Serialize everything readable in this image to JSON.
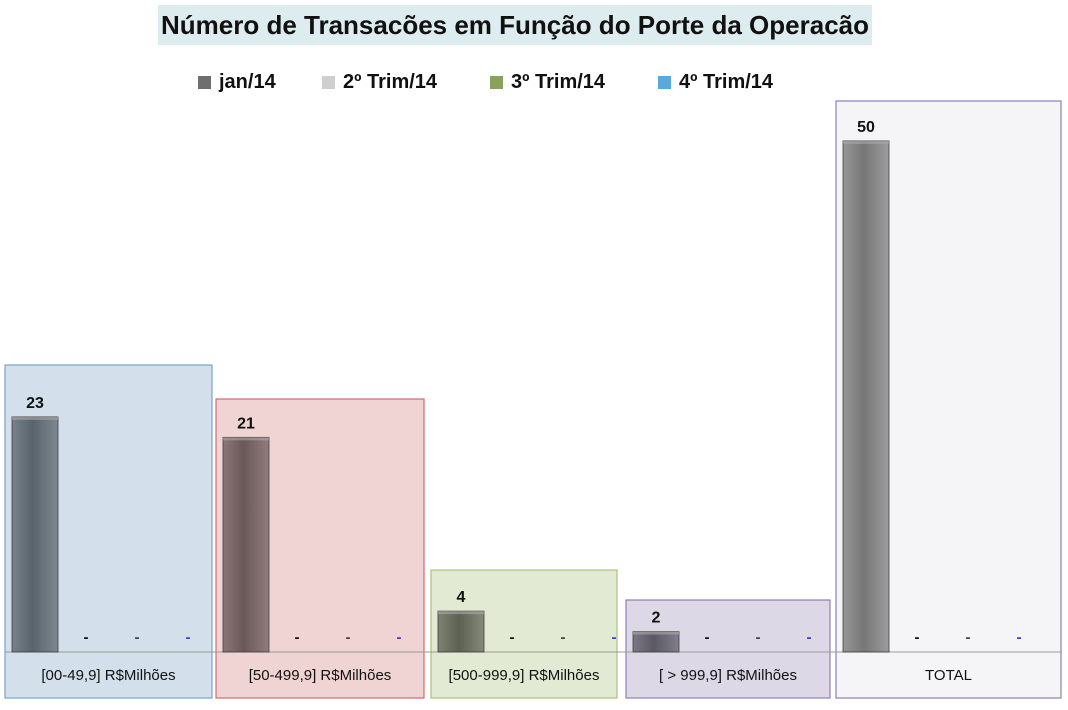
{
  "chart_data": {
    "type": "bar",
    "title": "Número de Transacões em Função do Porte da Operacão",
    "categories": [
      "[00-49,9] R$Milhões",
      "[50-499,9] R$Milhões",
      "[500-999,9] R$Milhões",
      "[ > 999,9] R$Milhões",
      "TOTAL"
    ],
    "series": [
      {
        "name": "jan/14",
        "values": [
          23,
          21,
          4,
          2,
          50
        ],
        "labels": [
          "23",
          "21",
          "4",
          "2",
          "50"
        ]
      },
      {
        "name": "2º Trim/14",
        "values": [
          0,
          0,
          0,
          0,
          0
        ],
        "labels": [
          "-",
          "-",
          "-",
          "-",
          "-"
        ]
      },
      {
        "name": "3º Trim/14",
        "values": [
          0,
          0,
          0,
          0,
          0
        ],
        "labels": [
          "-",
          "-",
          "-",
          "-",
          "-"
        ]
      },
      {
        "name": "4º Trim/14",
        "values": [
          0,
          0,
          0,
          0,
          0
        ],
        "labels": [
          "-",
          "-",
          "-",
          "-",
          "-"
        ]
      }
    ],
    "ylim": [
      0,
      54
    ],
    "legend_position": "top",
    "grid": false,
    "colors": {
      "legend": [
        "#6f6f6f",
        "#cfcfcf",
        "#8aa35c",
        "#5aa9dd"
      ],
      "group_fills": [
        "#d3dfea",
        "#f0d3d3",
        "#e3ead3",
        "#ddd8e6",
        "#f5f5f7"
      ],
      "group_strokes": [
        "#7aa4c8",
        "#d36b6b",
        "#a9c27a",
        "#8f7fb8",
        "#8f7fb8"
      ],
      "bar_fills": [
        "#59636b",
        "#6a5858",
        "#5c6152",
        "#5a5964",
        "#777777"
      ],
      "dash_colors": [
        "#111111",
        "#444444",
        "#3344cc"
      ]
    }
  }
}
